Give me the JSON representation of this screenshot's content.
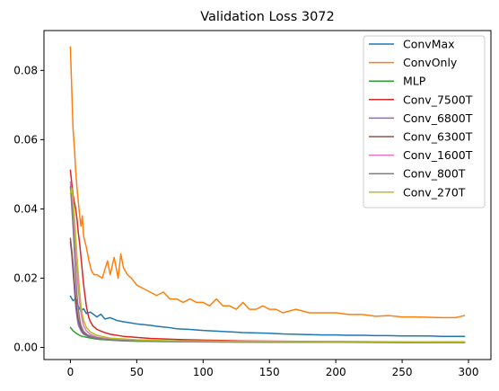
{
  "chart_data": {
    "type": "line",
    "title": "Validation Loss 3072",
    "xlabel": "",
    "ylabel": "",
    "xlim": [
      -19.9,
      316.9
    ],
    "ylim": [
      -0.0035,
      0.0915
    ],
    "xticks": [
      0,
      50,
      100,
      150,
      200,
      250,
      300
    ],
    "yticks": [
      0.0,
      0.02,
      0.04,
      0.06,
      0.08
    ],
    "ytick_labels": [
      "0.00",
      "0.02",
      "0.04",
      "0.06",
      "0.08"
    ],
    "grid": false,
    "legend_position": "top-right",
    "series": [
      {
        "name": "ConvMax",
        "color": "#1f77b4",
        "points": [
          [
            0,
            0.0148
          ],
          [
            2,
            0.0135
          ],
          [
            4,
            0.0141
          ],
          [
            6,
            0.0118
          ],
          [
            8,
            0.0105
          ],
          [
            10,
            0.0112
          ],
          [
            12,
            0.0098
          ],
          [
            15,
            0.0102
          ],
          [
            18,
            0.0094
          ],
          [
            20,
            0.0088
          ],
          [
            23,
            0.0096
          ],
          [
            26,
            0.0082
          ],
          [
            30,
            0.0086
          ],
          [
            35,
            0.0078
          ],
          [
            40,
            0.0074
          ],
          [
            45,
            0.0071
          ],
          [
            50,
            0.0068
          ],
          [
            55,
            0.0066
          ],
          [
            60,
            0.0064
          ],
          [
            65,
            0.0061
          ],
          [
            70,
            0.0059
          ],
          [
            75,
            0.0057
          ],
          [
            80,
            0.0054
          ],
          [
            90,
            0.0052
          ],
          [
            100,
            0.0049
          ],
          [
            110,
            0.0047
          ],
          [
            120,
            0.0045
          ],
          [
            130,
            0.0043
          ],
          [
            140,
            0.0042
          ],
          [
            150,
            0.0041
          ],
          [
            160,
            0.0039
          ],
          [
            170,
            0.0038
          ],
          [
            180,
            0.0037
          ],
          [
            190,
            0.0036
          ],
          [
            200,
            0.0036
          ],
          [
            210,
            0.0035
          ],
          [
            220,
            0.0035
          ],
          [
            230,
            0.0034
          ],
          [
            240,
            0.0034
          ],
          [
            250,
            0.0033
          ],
          [
            260,
            0.0033
          ],
          [
            270,
            0.0033
          ],
          [
            280,
            0.0032
          ],
          [
            290,
            0.0032
          ],
          [
            297,
            0.0032
          ]
        ]
      },
      {
        "name": "ConvOnly",
        "color": "#ff7f0e",
        "points": [
          [
            0,
            0.0868
          ],
          [
            1,
            0.075
          ],
          [
            2,
            0.063
          ],
          [
            3,
            0.058
          ],
          [
            4,
            0.051
          ],
          [
            5,
            0.046
          ],
          [
            6,
            0.042
          ],
          [
            7,
            0.038
          ],
          [
            8,
            0.035
          ],
          [
            9,
            0.038
          ],
          [
            10,
            0.032
          ],
          [
            12,
            0.029
          ],
          [
            14,
            0.025
          ],
          [
            16,
            0.022
          ],
          [
            18,
            0.021
          ],
          [
            20,
            0.021
          ],
          [
            24,
            0.02
          ],
          [
            28,
            0.025
          ],
          [
            30,
            0.021
          ],
          [
            33,
            0.026
          ],
          [
            36,
            0.02
          ],
          [
            38,
            0.027
          ],
          [
            40,
            0.023
          ],
          [
            43,
            0.021
          ],
          [
            46,
            0.02
          ],
          [
            50,
            0.018
          ],
          [
            55,
            0.017
          ],
          [
            60,
            0.016
          ],
          [
            65,
            0.015
          ],
          [
            70,
            0.016
          ],
          [
            75,
            0.014
          ],
          [
            80,
            0.014
          ],
          [
            85,
            0.013
          ],
          [
            90,
            0.014
          ],
          [
            95,
            0.013
          ],
          [
            100,
            0.013
          ],
          [
            105,
            0.012
          ],
          [
            110,
            0.014
          ],
          [
            115,
            0.012
          ],
          [
            120,
            0.012
          ],
          [
            125,
            0.011
          ],
          [
            130,
            0.013
          ],
          [
            135,
            0.011
          ],
          [
            140,
            0.011
          ],
          [
            145,
            0.012
          ],
          [
            150,
            0.011
          ],
          [
            155,
            0.011
          ],
          [
            160,
            0.01
          ],
          [
            170,
            0.011
          ],
          [
            180,
            0.01
          ],
          [
            190,
            0.01
          ],
          [
            200,
            0.01
          ],
          [
            210,
            0.0095
          ],
          [
            220,
            0.0095
          ],
          [
            230,
            0.009
          ],
          [
            240,
            0.0092
          ],
          [
            250,
            0.0088
          ],
          [
            260,
            0.0088
          ],
          [
            270,
            0.0087
          ],
          [
            280,
            0.0086
          ],
          [
            290,
            0.0086
          ],
          [
            297,
            0.0092
          ]
        ]
      },
      {
        "name": "MLP",
        "color": "#2ca02c",
        "points": [
          [
            0,
            0.0058
          ],
          [
            2,
            0.0048
          ],
          [
            4,
            0.0042
          ],
          [
            6,
            0.0037
          ],
          [
            8,
            0.0033
          ],
          [
            10,
            0.0031
          ],
          [
            14,
            0.0028
          ],
          [
            18,
            0.0025
          ],
          [
            22,
            0.0023
          ],
          [
            30,
            0.0021
          ],
          [
            40,
            0.0019
          ],
          [
            50,
            0.0018
          ],
          [
            70,
            0.0017
          ],
          [
            100,
            0.0016
          ],
          [
            150,
            0.0015
          ],
          [
            200,
            0.0015
          ],
          [
            250,
            0.0014
          ],
          [
            297,
            0.0014
          ]
        ]
      },
      {
        "name": "Conv_7500T",
        "color": "#d62728",
        "points": [
          [
            0,
            0.0512
          ],
          [
            1,
            0.0475
          ],
          [
            2,
            0.044
          ],
          [
            3,
            0.042
          ],
          [
            4,
            0.04
          ],
          [
            5,
            0.037
          ],
          [
            6,
            0.033
          ],
          [
            7,
            0.03
          ],
          [
            8,
            0.026
          ],
          [
            9,
            0.022
          ],
          [
            10,
            0.018
          ],
          [
            11,
            0.015
          ],
          [
            12,
            0.012
          ],
          [
            13,
            0.01
          ],
          [
            14,
            0.0085
          ],
          [
            15,
            0.0075
          ],
          [
            17,
            0.0062
          ],
          [
            20,
            0.0052
          ],
          [
            25,
            0.0044
          ],
          [
            30,
            0.0038
          ],
          [
            40,
            0.0032
          ],
          [
            50,
            0.0029
          ],
          [
            60,
            0.0026
          ],
          [
            80,
            0.0023
          ],
          [
            100,
            0.0021
          ],
          [
            130,
            0.0019
          ],
          [
            160,
            0.0018
          ],
          [
            200,
            0.0017
          ],
          [
            250,
            0.0016
          ],
          [
            297,
            0.0016
          ]
        ]
      },
      {
        "name": "Conv_6800T",
        "color": "#9467bd",
        "points": [
          [
            0,
            0.0305
          ],
          [
            1,
            0.027
          ],
          [
            2,
            0.022
          ],
          [
            3,
            0.017
          ],
          [
            4,
            0.012
          ],
          [
            5,
            0.0088
          ],
          [
            6,
            0.0065
          ],
          [
            8,
            0.0048
          ],
          [
            10,
            0.0038
          ],
          [
            14,
            0.0031
          ],
          [
            20,
            0.0026
          ],
          [
            30,
            0.0022
          ],
          [
            50,
            0.0019
          ],
          [
            80,
            0.0017
          ],
          [
            120,
            0.0016
          ],
          [
            200,
            0.0015
          ],
          [
            297,
            0.0015
          ]
        ]
      },
      {
        "name": "Conv_6300T",
        "color": "#8c564b",
        "points": [
          [
            0,
            0.0315
          ],
          [
            1,
            0.028
          ],
          [
            2,
            0.024
          ],
          [
            3,
            0.019
          ],
          [
            4,
            0.014
          ],
          [
            5,
            0.0105
          ],
          [
            6,
            0.0078
          ],
          [
            8,
            0.0055
          ],
          [
            10,
            0.0042
          ],
          [
            14,
            0.0033
          ],
          [
            20,
            0.0027
          ],
          [
            30,
            0.0023
          ],
          [
            50,
            0.002
          ],
          [
            80,
            0.0018
          ],
          [
            120,
            0.0017
          ],
          [
            200,
            0.0016
          ],
          [
            297,
            0.0016
          ]
        ]
      },
      {
        "name": "Conv_1600T",
        "color": "#e377c2",
        "points": [
          [
            0,
            0.0478
          ],
          [
            1,
            0.044
          ],
          [
            2,
            0.039
          ],
          [
            3,
            0.034
          ],
          [
            4,
            0.028
          ],
          [
            5,
            0.022
          ],
          [
            6,
            0.017
          ],
          [
            7,
            0.013
          ],
          [
            8,
            0.0098
          ],
          [
            9,
            0.0078
          ],
          [
            10,
            0.0062
          ],
          [
            12,
            0.0048
          ],
          [
            15,
            0.0038
          ],
          [
            20,
            0.003
          ],
          [
            30,
            0.0024
          ],
          [
            50,
            0.002
          ],
          [
            80,
            0.0018
          ],
          [
            120,
            0.0017
          ],
          [
            200,
            0.0016
          ],
          [
            297,
            0.0015
          ]
        ]
      },
      {
        "name": "Conv_800T",
        "color": "#7f7f7f",
        "points": [
          [
            0,
            0.0465
          ],
          [
            1,
            0.041
          ],
          [
            2,
            0.035
          ],
          [
            3,
            0.028
          ],
          [
            4,
            0.021
          ],
          [
            5,
            0.015
          ],
          [
            6,
            0.011
          ],
          [
            7,
            0.0082
          ],
          [
            8,
            0.0063
          ],
          [
            10,
            0.0046
          ],
          [
            13,
            0.0036
          ],
          [
            18,
            0.0029
          ],
          [
            25,
            0.0024
          ],
          [
            40,
            0.002
          ],
          [
            60,
            0.0018
          ],
          [
            100,
            0.0017
          ],
          [
            150,
            0.0016
          ],
          [
            200,
            0.0015
          ],
          [
            297,
            0.0015
          ]
        ]
      },
      {
        "name": "Conv_270T",
        "color": "#bcbd22",
        "points": [
          [
            0,
            0.0445
          ],
          [
            1,
            0.046
          ],
          [
            2,
            0.043
          ],
          [
            3,
            0.038
          ],
          [
            4,
            0.032
          ],
          [
            5,
            0.026
          ],
          [
            6,
            0.021
          ],
          [
            7,
            0.016
          ],
          [
            8,
            0.012
          ],
          [
            9,
            0.0095
          ],
          [
            10,
            0.0078
          ],
          [
            12,
            0.0058
          ],
          [
            15,
            0.0045
          ],
          [
            20,
            0.0035
          ],
          [
            30,
            0.0027
          ],
          [
            50,
            0.0022
          ],
          [
            80,
            0.0019
          ],
          [
            120,
            0.0018
          ],
          [
            200,
            0.0017
          ],
          [
            297,
            0.0016
          ]
        ]
      }
    ]
  }
}
